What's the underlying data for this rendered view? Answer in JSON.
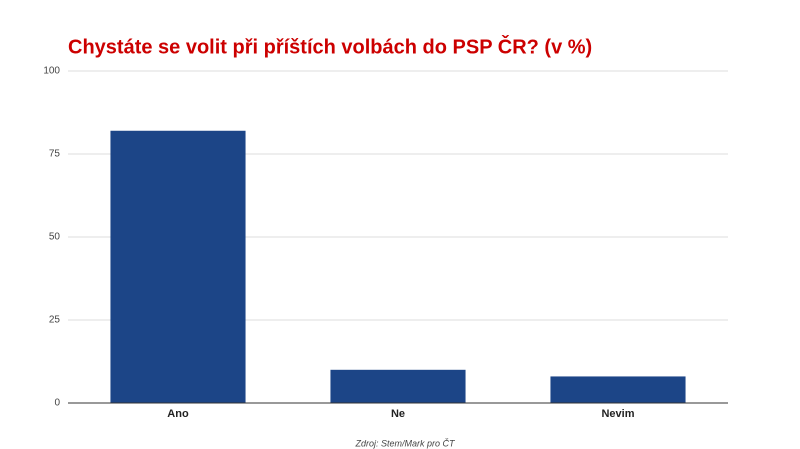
{
  "chart_data": {
    "type": "bar",
    "title": "Chystáte se volit při příštích volbách do PSP ČR? (v %)",
    "categories": [
      "Ano",
      "Ne",
      "Nevim"
    ],
    "values": [
      82,
      10,
      8
    ],
    "color": "#1c4587",
    "ylim": [
      0,
      100
    ],
    "yticks": [
      0,
      25,
      50,
      75,
      100
    ],
    "grid": true,
    "source": "Zdroj: Stem/Mark pro ČT"
  }
}
